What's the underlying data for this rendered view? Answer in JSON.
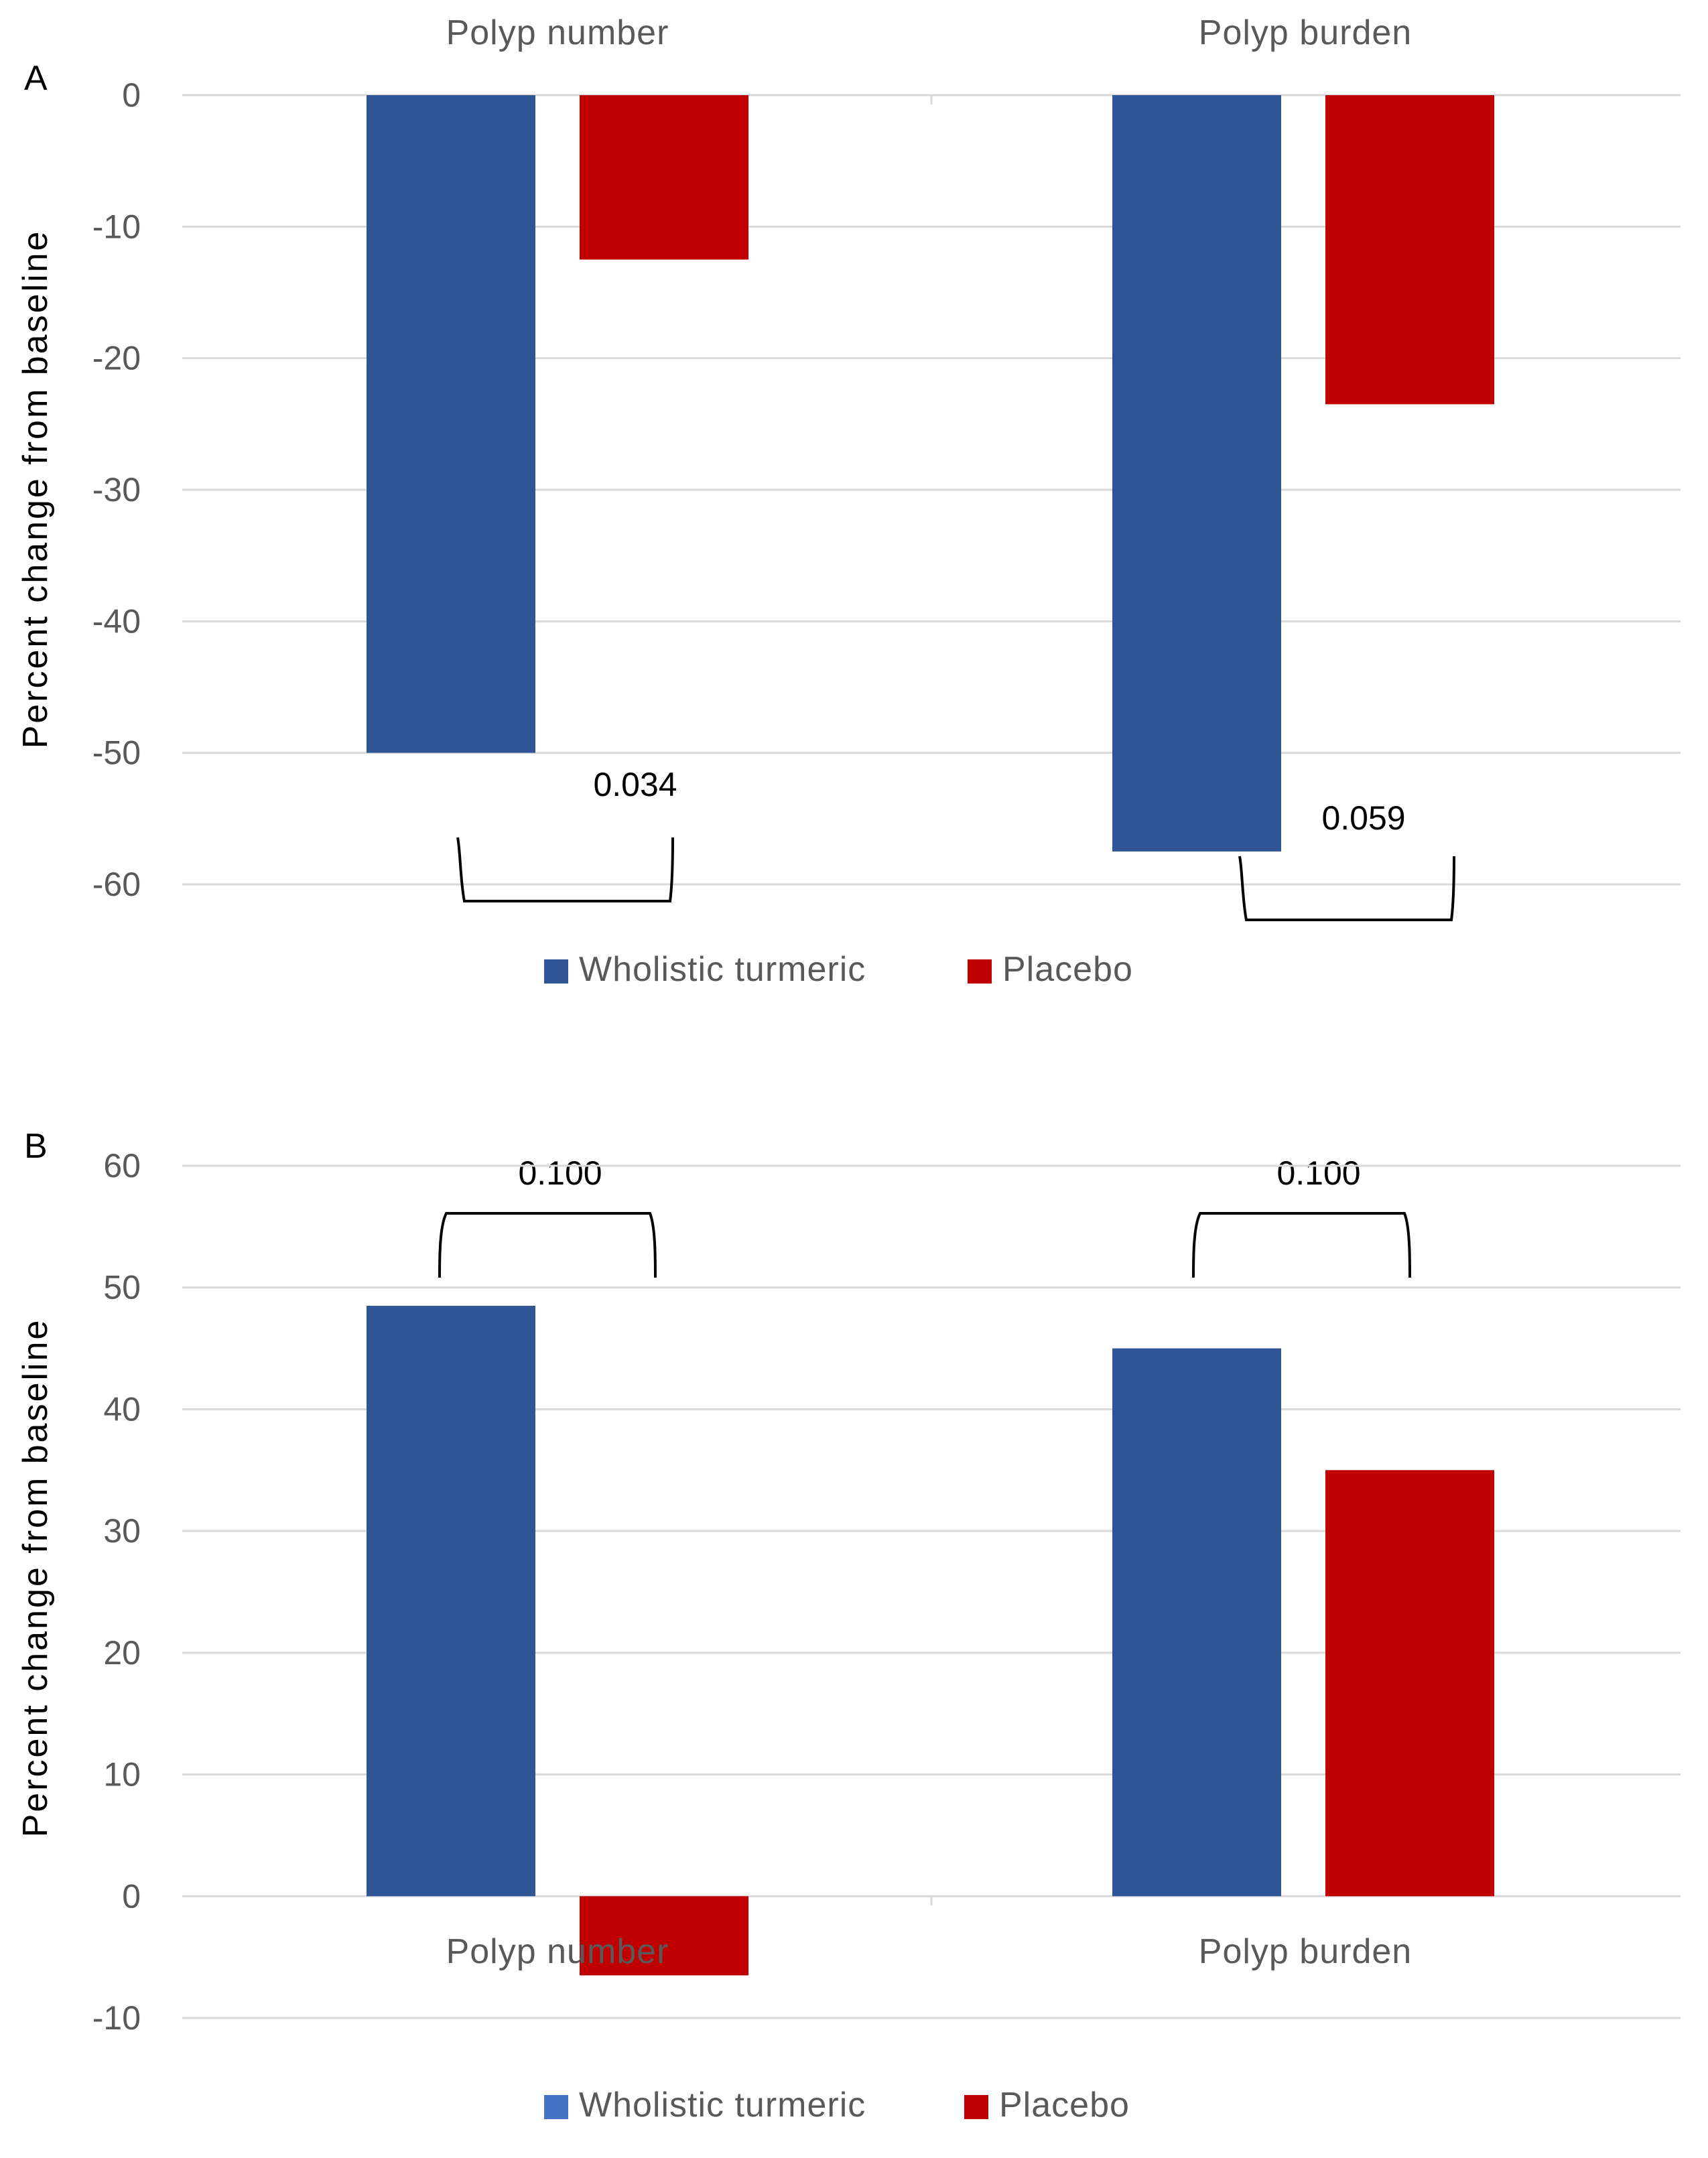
{
  "colors": {
    "turmeric": "#2F5597",
    "placebo": "#C00000",
    "turmeric_legend_b": "#4472C4",
    "grid": "#D9D9D9",
    "axis_text": "#595959",
    "annotation": "#000000"
  },
  "chart_data": [
    {
      "panel": "A",
      "type": "bar",
      "categories": [
        "Polyp number",
        "Polyp burden"
      ],
      "category_label_position": "top",
      "series": [
        {
          "name": "Wholistic turmeric",
          "values": [
            -50,
            -57.5
          ]
        },
        {
          "name": "Placebo",
          "values": [
            -12.5,
            -23.5
          ]
        }
      ],
      "ylabel": "Percent change from baseline",
      "ylim": [
        -60,
        0
      ],
      "yticks": [
        0,
        -10,
        -20,
        -30,
        -40,
        -50,
        -60
      ],
      "grid": true,
      "legend": [
        "Wholistic turmeric",
        "Placebo"
      ],
      "legend_position": "bottom",
      "annotations": [
        {
          "category": "Polyp number",
          "text": "0.034"
        },
        {
          "category": "Polyp burden",
          "text": "0.059"
        }
      ]
    },
    {
      "panel": "B",
      "type": "bar",
      "categories": [
        "Polyp number",
        "Polyp burden"
      ],
      "category_label_position": "bottom",
      "series": [
        {
          "name": "Wholistic turmeric",
          "values": [
            48.5,
            45
          ]
        },
        {
          "name": "Placebo",
          "values": [
            -6.5,
            35
          ]
        }
      ],
      "ylabel": "Percent change from baseline",
      "ylim": [
        -10,
        60
      ],
      "yticks": [
        60,
        50,
        40,
        30,
        20,
        10,
        0,
        -10
      ],
      "grid": true,
      "legend": [
        "Wholistic turmeric",
        "Placebo"
      ],
      "legend_position": "bottom",
      "annotations": [
        {
          "category": "Polyp number",
          "text": "0.100"
        },
        {
          "category": "Polyp burden",
          "text": "0.100"
        }
      ]
    }
  ]
}
